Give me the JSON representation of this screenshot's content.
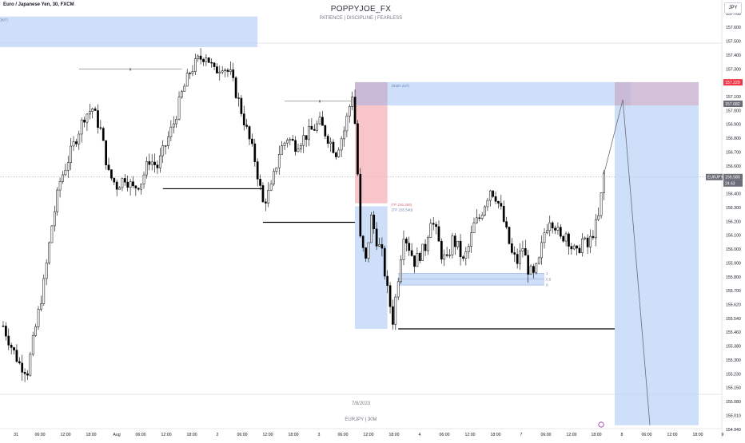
{
  "header": {
    "symbol_title": "Euro / Japanese Yen, 30, FXCM",
    "brand": "POPPYJOE_FX",
    "tagline": "PATIENCE  |  DISCIPLINE  |  FEARLESS",
    "currency": "JPY"
  },
  "watermark": {
    "date": "7/8/2023",
    "symbol_tf": "EURJPY | 30M"
  },
  "colors": {
    "background": "#ffffff",
    "candle": "#000000",
    "zone_blue": "#bcd4f7",
    "zone_red": "#f6b6bd",
    "zone_purple": "#c8b2cf",
    "label_red": "#f23645",
    "label_dark": "#6a6d78",
    "axis_text": "#131722",
    "grid": "#c9cdd5"
  },
  "chart_data": {
    "type": "candlestick",
    "symbol": "EURJPY",
    "timeframe": "30",
    "source": "FXCM",
    "ylim": [
      154.9,
      157.7
    ],
    "yticks": [
      "157.700",
      "157.600",
      "157.500",
      "157.400",
      "157.300",
      "157.200",
      "157.100",
      "157.000",
      "156.900",
      "156.800",
      "156.700",
      "156.600",
      "156.500",
      "156.400",
      "156.300",
      "156.200",
      "156.100",
      "156.000",
      "155.900",
      "155.800",
      "155.700",
      "155.620",
      "155.540",
      "155.460",
      "155.380",
      "155.300",
      "155.230",
      "155.150",
      "155.080",
      "155.010",
      "154.940"
    ],
    "xticks": [
      "31",
      "06:00",
      "12:00",
      "18:00",
      "Aug",
      "06:00",
      "12:00",
      "18:00",
      "2",
      "06:00",
      "12:00",
      "18:00",
      "3",
      "06:00",
      "12:00",
      "18:00",
      "4",
      "06:00",
      "12:00",
      "18:00",
      "7",
      "06:00",
      "12:00",
      "18:00",
      "8",
      "06:00",
      "12:00",
      "18:00",
      "9"
    ],
    "price_labels": [
      {
        "value": "157.229",
        "style": "red"
      },
      {
        "value": "157.082",
        "style": "dark"
      },
      {
        "value": "156.580",
        "style": "dark",
        "prefix": "EURJPY",
        "countdown": "24:43"
      }
    ],
    "current_price": 156.58,
    "close_path": [
      [
        0,
        155.56
      ],
      [
        3,
        155.42
      ],
      [
        6,
        155.3
      ],
      [
        9,
        155.25
      ],
      [
        12,
        155.55
      ],
      [
        15,
        155.85
      ],
      [
        18,
        156.25
      ],
      [
        21,
        156.55
      ],
      [
        24,
        156.7
      ],
      [
        27,
        156.85
      ],
      [
        30,
        157.0
      ],
      [
        33,
        157.05
      ],
      [
        36,
        156.9
      ],
      [
        39,
        156.6
      ],
      [
        42,
        156.52
      ],
      [
        45,
        156.58
      ],
      [
        48,
        156.5
      ],
      [
        51,
        156.55
      ],
      [
        54,
        156.7
      ],
      [
        57,
        156.65
      ],
      [
        60,
        156.8
      ],
      [
        63,
        156.95
      ],
      [
        66,
        157.15
      ],
      [
        69,
        157.3
      ],
      [
        72,
        157.38
      ],
      [
        75,
        157.42
      ],
      [
        78,
        157.3
      ],
      [
        81,
        157.35
      ],
      [
        84,
        157.28
      ],
      [
        87,
        157.1
      ],
      [
        90,
        156.9
      ],
      [
        93,
        156.7
      ],
      [
        96,
        156.4
      ],
      [
        99,
        156.5
      ],
      [
        102,
        156.75
      ],
      [
        105,
        156.85
      ],
      [
        108,
        156.8
      ],
      [
        111,
        156.85
      ],
      [
        114,
        156.9
      ],
      [
        117,
        156.95
      ],
      [
        120,
        156.85
      ],
      [
        123,
        156.75
      ],
      [
        126,
        156.9
      ],
      [
        129,
        157.15
      ],
      [
        130,
        156.95
      ],
      [
        131,
        156.6
      ],
      [
        132,
        156.15
      ],
      [
        134,
        156.0
      ],
      [
        136,
        156.3
      ],
      [
        138,
        156.15
      ],
      [
        140,
        156.05
      ],
      [
        142,
        155.8
      ],
      [
        144,
        155.6
      ],
      [
        146,
        155.9
      ],
      [
        148,
        156.2
      ],
      [
        150,
        156.1
      ],
      [
        152,
        156.0
      ],
      [
        154,
        156.05
      ],
      [
        156,
        156.1
      ],
      [
        158,
        156.3
      ],
      [
        160,
        156.2
      ],
      [
        162,
        156.05
      ],
      [
        164,
        156.0
      ],
      [
        166,
        156.15
      ],
      [
        168,
        156.1
      ],
      [
        170,
        156.0
      ],
      [
        172,
        156.1
      ],
      [
        174,
        156.25
      ],
      [
        176,
        156.3
      ],
      [
        178,
        156.4
      ],
      [
        180,
        156.5
      ],
      [
        182,
        156.45
      ],
      [
        184,
        156.35
      ],
      [
        186,
        156.2
      ],
      [
        188,
        156.05
      ],
      [
        190,
        156.0
      ],
      [
        192,
        156.1
      ],
      [
        194,
        155.95
      ],
      [
        196,
        155.9
      ],
      [
        198,
        156.0
      ],
      [
        200,
        156.2
      ],
      [
        202,
        156.3
      ],
      [
        204,
        156.25
      ],
      [
        206,
        156.15
      ],
      [
        208,
        156.2
      ],
      [
        210,
        156.1
      ],
      [
        212,
        156.05
      ],
      [
        214,
        156.15
      ],
      [
        216,
        156.1
      ],
      [
        218,
        156.2
      ],
      [
        220,
        156.3
      ],
      [
        222,
        156.6
      ]
    ],
    "zones": [
      {
        "kind": "blue",
        "x": [
          -2,
          94
        ],
        "y": [
          157.47,
          157.68
        ],
        "label": "(997)"
      },
      {
        "kind": "blue",
        "x": [
          130,
          232
        ],
        "y": [
          157.07,
          157.23
        ],
        "label": "(9187.237)"
      },
      {
        "kind": "purple",
        "x": [
          130,
          142
        ],
        "y": [
          157.07,
          157.23
        ]
      },
      {
        "kind": "red",
        "x": [
          130,
          142
        ],
        "y": [
          156.4,
          157.07
        ]
      },
      {
        "kind": "blue",
        "x": [
          130,
          142
        ],
        "y": [
          155.54,
          156.38
        ],
        "label": "(TP 155.540)"
      },
      {
        "kind": "blue",
        "x": [
          226,
          257
        ],
        "y": [
          154.88,
          157.07
        ]
      },
      {
        "kind": "purple",
        "x": [
          226,
          257
        ],
        "y": [
          157.07,
          157.23
        ]
      },
      {
        "kind": "blue",
        "x": [
          146,
          200
        ],
        "y": [
          155.84,
          155.92
        ]
      }
    ],
    "zone_labels": [
      {
        "text": "(TP 156.389)",
        "x": 143,
        "y": 156.39
      }
    ],
    "horizontal_lines": [
      {
        "x": [
          59,
          96
        ],
        "y": 156.5,
        "color": "#000000"
      },
      {
        "x": [
          96,
          130
        ],
        "y": 156.27,
        "color": "#000000"
      },
      {
        "x": [
          146,
          226
        ],
        "y": 155.54,
        "color": "#000000"
      },
      {
        "x": [
          28,
          66
        ],
        "y": 157.32,
        "color": "#888888",
        "dash": false,
        "mark": "x"
      },
      {
        "x": [
          104,
          130
        ],
        "y": 157.1,
        "color": "#888888",
        "mark": "x"
      }
    ],
    "fib_levels": [
      {
        "label": "1",
        "y": 155.92
      },
      {
        "label": "0.5",
        "y": 155.88
      },
      {
        "label": "0",
        "y": 155.84
      }
    ],
    "projection": [
      [
        222,
        156.6
      ],
      [
        229,
        157.11
      ],
      [
        239,
        154.88
      ]
    ],
    "event_marker": {
      "x": 221,
      "label": "…"
    }
  }
}
